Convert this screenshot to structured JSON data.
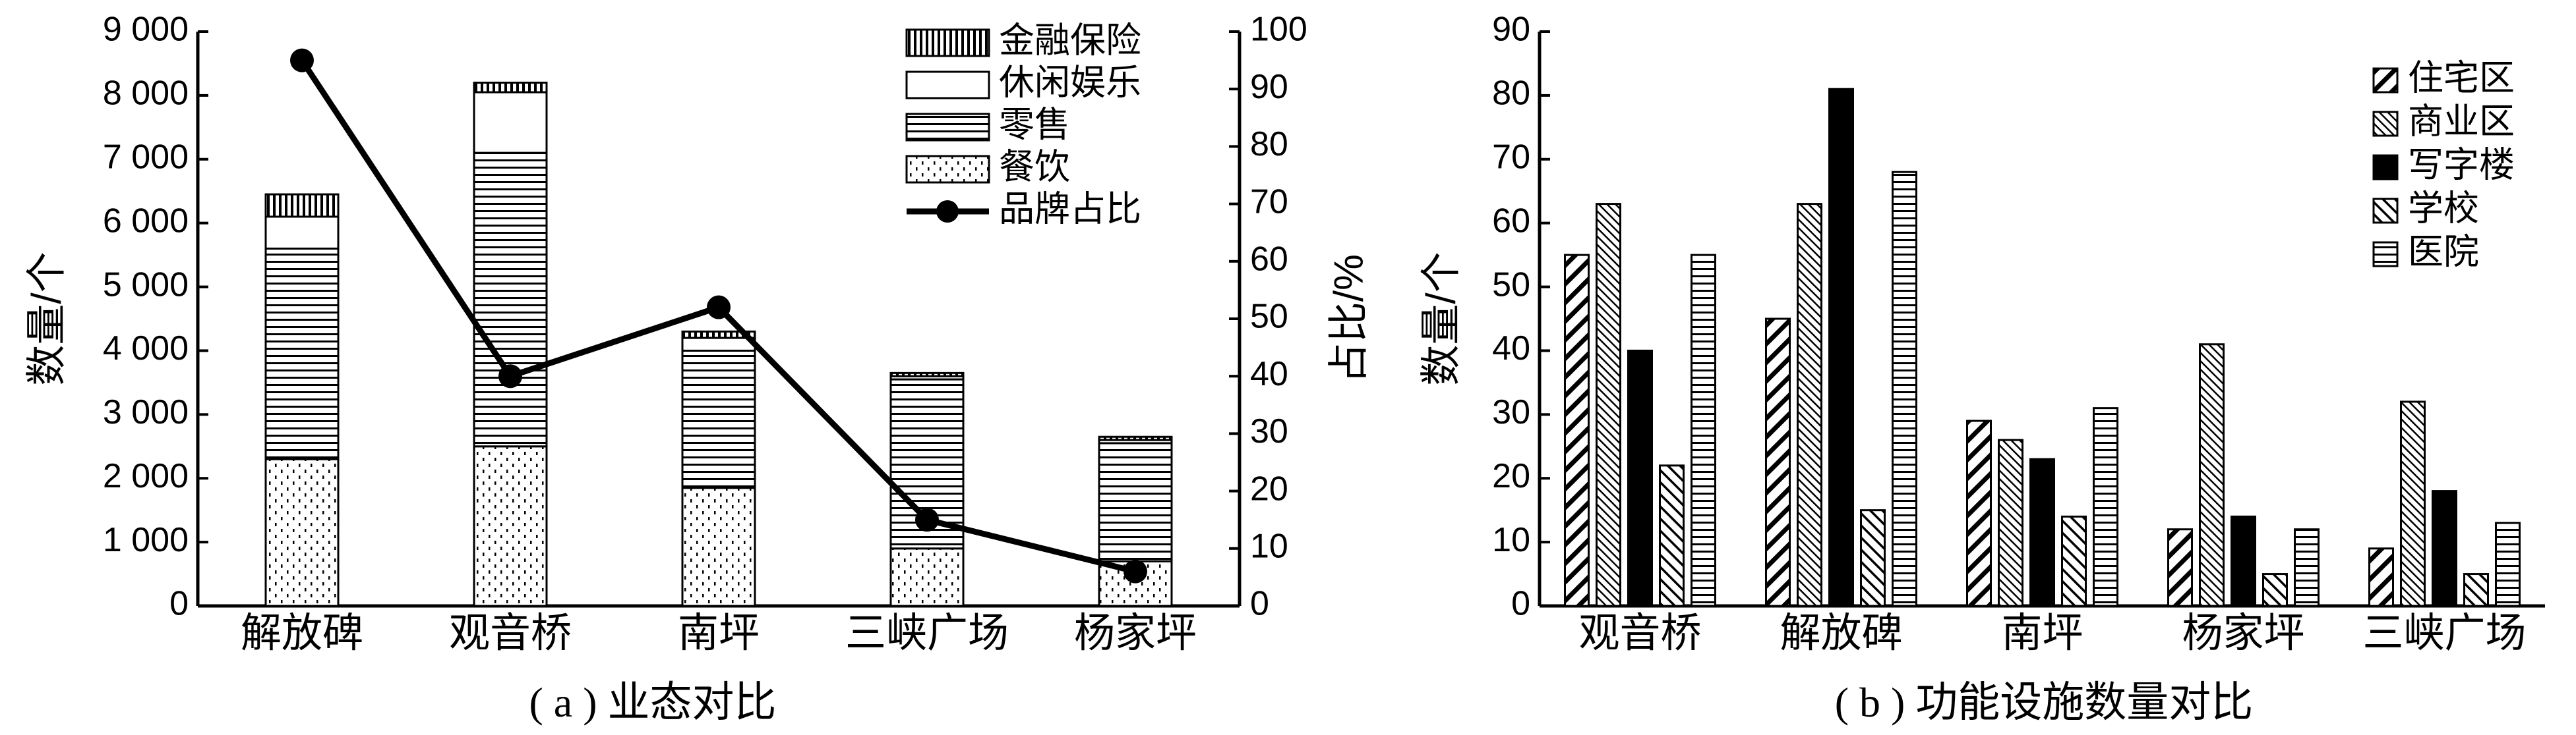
{
  "chart_data": [
    {
      "type": "bar",
      "stacked": true,
      "caption": "( a ) 业态对比",
      "categories": [
        "解放碑",
        "观音桥",
        "南坪",
        "三峡广场",
        "杨家坪"
      ],
      "series": [
        {
          "name": "餐饮",
          "values": [
            2300,
            2500,
            1850,
            900,
            700
          ],
          "pattern": "dots"
        },
        {
          "name": "零售",
          "values": [
            3300,
            4600,
            2150,
            2650,
            1850
          ],
          "pattern": "hlines"
        },
        {
          "name": "休闲娱乐",
          "values": [
            500,
            950,
            200,
            50,
            50
          ],
          "pattern": "white"
        },
        {
          "name": "金融保险",
          "values": [
            350,
            150,
            100,
            50,
            50
          ],
          "pattern": "vlines"
        }
      ],
      "line_series": {
        "name": "品牌占比",
        "values": [
          95,
          40,
          52,
          15,
          6
        ]
      },
      "ylabel": "数量/个",
      "ylim": [
        0,
        9000
      ],
      "yticks": [
        "0",
        "1 000",
        "2 000",
        "3 000",
        "4 000",
        "5 000",
        "6 000",
        "7 000",
        "8 000",
        "9 000"
      ],
      "y2label": "占比/%",
      "y2lim": [
        0,
        100
      ],
      "y2ticks": [
        "0",
        "10",
        "20",
        "30",
        "40",
        "50",
        "60",
        "70",
        "80",
        "90",
        "100"
      ],
      "legend_order": [
        "金融保险",
        "休闲娱乐",
        "零售",
        "餐饮",
        "品牌占比"
      ],
      "legend_position": "top-right",
      "grid": false
    },
    {
      "type": "bar",
      "caption": "( b ) 功能设施数量对比",
      "categories": [
        "观音桥",
        "解放碑",
        "南坪",
        "杨家坪",
        "三峡广场"
      ],
      "series": [
        {
          "name": "住宅区",
          "values": [
            55,
            45,
            29,
            12,
            9
          ],
          "pattern": "diag-wide"
        },
        {
          "name": "商业区",
          "values": [
            63,
            63,
            26,
            41,
            32
          ],
          "pattern": "diag-fine"
        },
        {
          "name": "写字楼",
          "values": [
            40,
            81,
            23,
            14,
            18
          ],
          "pattern": "solid"
        },
        {
          "name": "学校",
          "values": [
            22,
            15,
            14,
            5,
            5
          ],
          "pattern": "diag-med"
        },
        {
          "name": "医院",
          "values": [
            55,
            68,
            31,
            12,
            13
          ],
          "pattern": "hlines"
        }
      ],
      "ylabel": "数量/个",
      "ylim": [
        0,
        90
      ],
      "yticks": [
        "0",
        "10",
        "20",
        "30",
        "40",
        "50",
        "60",
        "70",
        "80",
        "90"
      ],
      "legend_position": "top-right",
      "grid": false
    }
  ]
}
